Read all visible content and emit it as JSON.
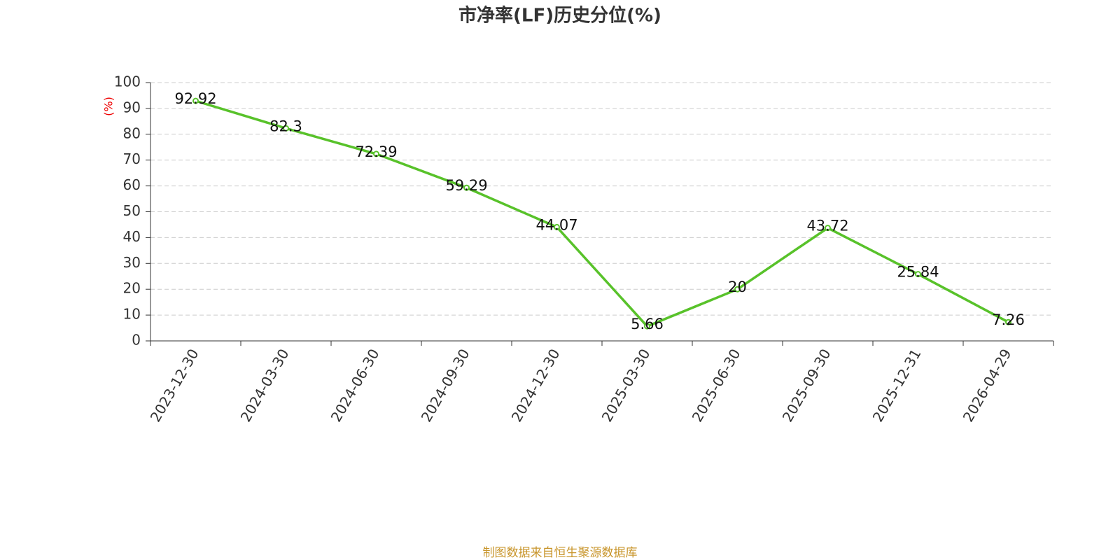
{
  "chart_data": {
    "type": "line",
    "title": "市净率(LF)历史分位(%)",
    "y_label": "(%)",
    "source": "制图数据来自恒生聚源数据库",
    "categories": [
      "2023-12-30",
      "2024-03-30",
      "2024-06-30",
      "2024-09-30",
      "2024-12-30",
      "2025-03-30",
      "2025-06-30",
      "2025-09-30",
      "2025-12-31",
      "2026-04-29"
    ],
    "values": [
      92.92,
      82.3,
      72.39,
      59.29,
      44.07,
      5.66,
      20,
      43.72,
      25.84,
      7.26
    ],
    "color": "#58c22a",
    "ylim": [
      0,
      100
    ],
    "yticks": [
      0,
      10,
      20,
      30,
      40,
      50,
      60,
      70,
      80,
      90,
      100
    ],
    "grid": true
  }
}
